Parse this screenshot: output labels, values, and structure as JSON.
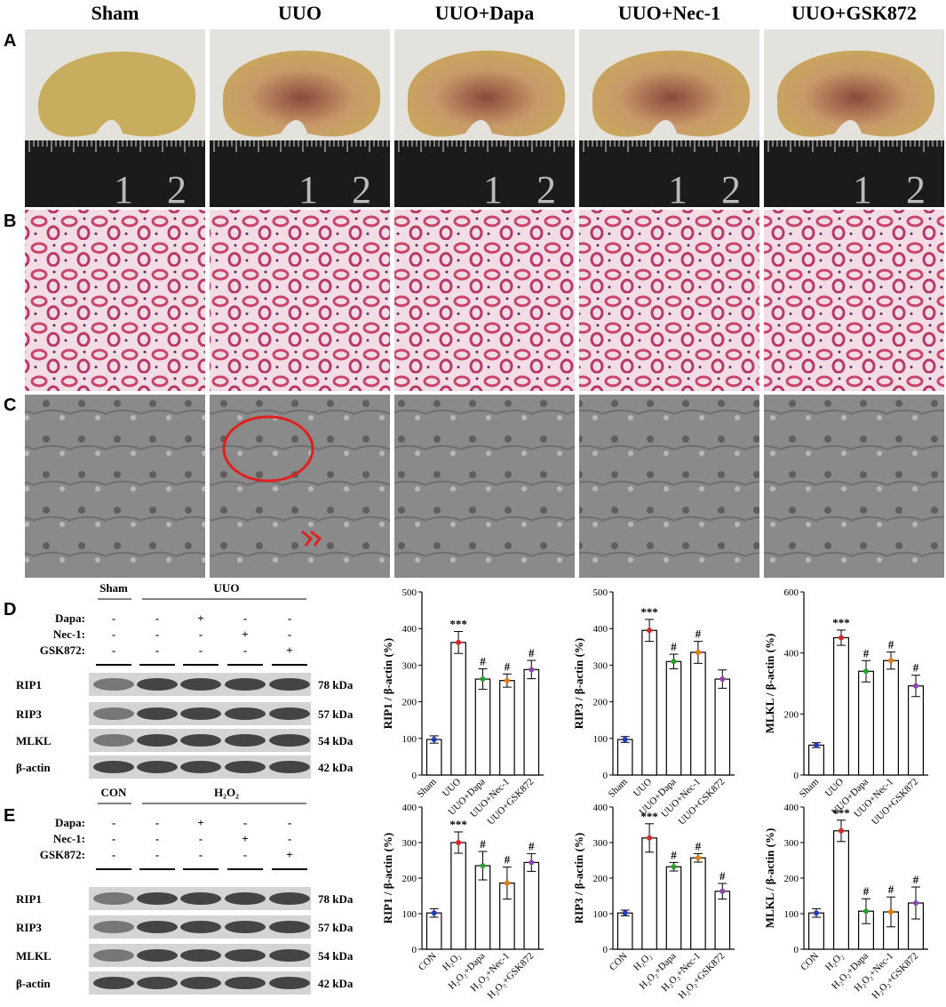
{
  "column_headers": [
    "Sham",
    "UUO",
    "UUO+Dapa",
    "UUO+Nec-1",
    "UUO+GSK872"
  ],
  "panels": [
    "A",
    "B",
    "C",
    "D",
    "E"
  ],
  "ruler_marks": [
    "1",
    "2"
  ],
  "blots": [
    {
      "group_headers": [
        "Sham",
        "UUO"
      ],
      "treatments": [
        {
          "name": "Dapa:",
          "signs": [
            "-",
            "-",
            "+",
            "-",
            "-"
          ]
        },
        {
          "name": "Nec-1:",
          "signs": [
            "-",
            "-",
            "-",
            "+",
            "-"
          ]
        },
        {
          "name": "GSK872:",
          "signs": [
            "-",
            "-",
            "-",
            "-",
            "+"
          ]
        }
      ],
      "bands": [
        {
          "protein": "RIP1",
          "size": "78 kDa"
        },
        {
          "protein": "RIP3",
          "size": "57 kDa"
        },
        {
          "protein": "MLKL",
          "size": "54 kDa"
        },
        {
          "protein": "β-actin",
          "size": "42 kDa"
        }
      ]
    },
    {
      "group_headers": [
        "CON",
        "H₂O₂"
      ],
      "treatments": [
        {
          "name": "Dapa:",
          "signs": [
            "-",
            "-",
            "+",
            "-",
            "-"
          ]
        },
        {
          "name": "Nec-1:",
          "signs": [
            "-",
            "-",
            "-",
            "+",
            "-"
          ]
        },
        {
          "name": "GSK872:",
          "signs": [
            "-",
            "-",
            "-",
            "-",
            "+"
          ]
        }
      ],
      "bands": [
        {
          "protein": "RIP1",
          "size": "78 kDa"
        },
        {
          "protein": "RIP3",
          "size": "57 kDa"
        },
        {
          "protein": "MLKL",
          "size": "54 kDa"
        },
        {
          "protein": "β-actin",
          "size": "42 kDa"
        }
      ]
    }
  ],
  "chart_data": [
    {
      "type": "bar",
      "ylabel": "RIP1 / β-actin (%)",
      "categories": [
        "Sham",
        "UUO",
        "UUO+Dapa",
        "UUO+Nec-1",
        "UUO+GSK872"
      ],
      "values": [
        97,
        362,
        262,
        258,
        288
      ],
      "errors": [
        10,
        30,
        28,
        18,
        25
      ],
      "annotations": [
        null,
        "***",
        "#",
        "#",
        "#"
      ],
      "point_colors": [
        "#1f3fbf",
        "#d62728",
        "#2ca02c",
        "#e07b00",
        "#8e44ad"
      ],
      "ylim": [
        0,
        500
      ],
      "yticks": [
        0,
        100,
        200,
        300,
        400,
        500
      ]
    },
    {
      "type": "bar",
      "ylabel": "RIP3 / β-actin (%)",
      "categories": [
        "Sham",
        "UUO",
        "UUO+Dapa",
        "UUO+Nec-1",
        "UUO+GSK872"
      ],
      "values": [
        97,
        395,
        310,
        335,
        262
      ],
      "errors": [
        8,
        30,
        20,
        30,
        25
      ],
      "annotations": [
        null,
        "***",
        "#",
        "#",
        null
      ],
      "point_colors": [
        "#1f3fbf",
        "#d62728",
        "#2ca02c",
        "#e07b00",
        "#8e44ad"
      ],
      "ylim": [
        0,
        500
      ],
      "yticks": [
        0,
        100,
        200,
        300,
        400,
        500
      ]
    },
    {
      "type": "bar",
      "ylabel": "MLKL / β-actin (%)",
      "categories": [
        "Sham",
        "UUO",
        "UUO+Dapa",
        "UUO+Nec-1",
        "UUO+GSK872"
      ],
      "values": [
        98,
        450,
        340,
        375,
        292
      ],
      "errors": [
        8,
        25,
        35,
        28,
        35
      ],
      "annotations": [
        null,
        "***",
        "#",
        "#",
        "#"
      ],
      "point_colors": [
        "#1f3fbf",
        "#d62728",
        "#2ca02c",
        "#e07b00",
        "#8e44ad"
      ],
      "ylim": [
        0,
        600
      ],
      "yticks": [
        0,
        200,
        400,
        600
      ]
    },
    {
      "type": "bar",
      "ylabel": "RIP1 / β-actin (%)",
      "categories": [
        "CON",
        "H₂O₂",
        "H₂O₂+Dapa",
        "H₂O₂+Nec-1",
        "H₂O₂+GSK872"
      ],
      "values": [
        102,
        300,
        235,
        186,
        244
      ],
      "errors": [
        12,
        30,
        40,
        45,
        25
      ],
      "annotations": [
        null,
        "***",
        "#",
        "#",
        "#"
      ],
      "point_colors": [
        "#1f3fbf",
        "#d62728",
        "#2ca02c",
        "#e07b00",
        "#8e44ad"
      ],
      "ylim": [
        0,
        400
      ],
      "yticks": [
        0,
        100,
        200,
        300,
        400
      ]
    },
    {
      "type": "bar",
      "ylabel": "RIP3 / β-actin (%)",
      "categories": [
        "CON",
        "H₂O₂",
        "H₂O₂+Dapa",
        "H₂O₂+Nec-1",
        "H₂O₂+GSK872"
      ],
      "values": [
        102,
        313,
        232,
        257,
        163
      ],
      "errors": [
        8,
        40,
        12,
        12,
        22
      ],
      "annotations": [
        null,
        "***",
        "#",
        "#",
        "#"
      ],
      "point_colors": [
        "#1f3fbf",
        "#d62728",
        "#2ca02c",
        "#e07b00",
        "#8e44ad"
      ],
      "ylim": [
        0,
        400
      ],
      "yticks": [
        0,
        100,
        200,
        300,
        400
      ]
    },
    {
      "type": "bar",
      "ylabel": "MLKL / β-actin (%)",
      "categories": [
        "CON",
        "H₂O₂",
        "H₂O₂+Dapa",
        "H₂O₂+Nec-1",
        "H₂O₂+GSK872"
      ],
      "values": [
        102,
        333,
        107,
        105,
        130
      ],
      "errors": [
        12,
        30,
        35,
        42,
        45
      ],
      "annotations": [
        null,
        "***",
        "#",
        "#",
        "#"
      ],
      "point_colors": [
        "#1f3fbf",
        "#d62728",
        "#2ca02c",
        "#e07b00",
        "#8e44ad"
      ],
      "ylim": [
        0,
        400
      ],
      "yticks": [
        0,
        100,
        200,
        300,
        400
      ]
    }
  ]
}
